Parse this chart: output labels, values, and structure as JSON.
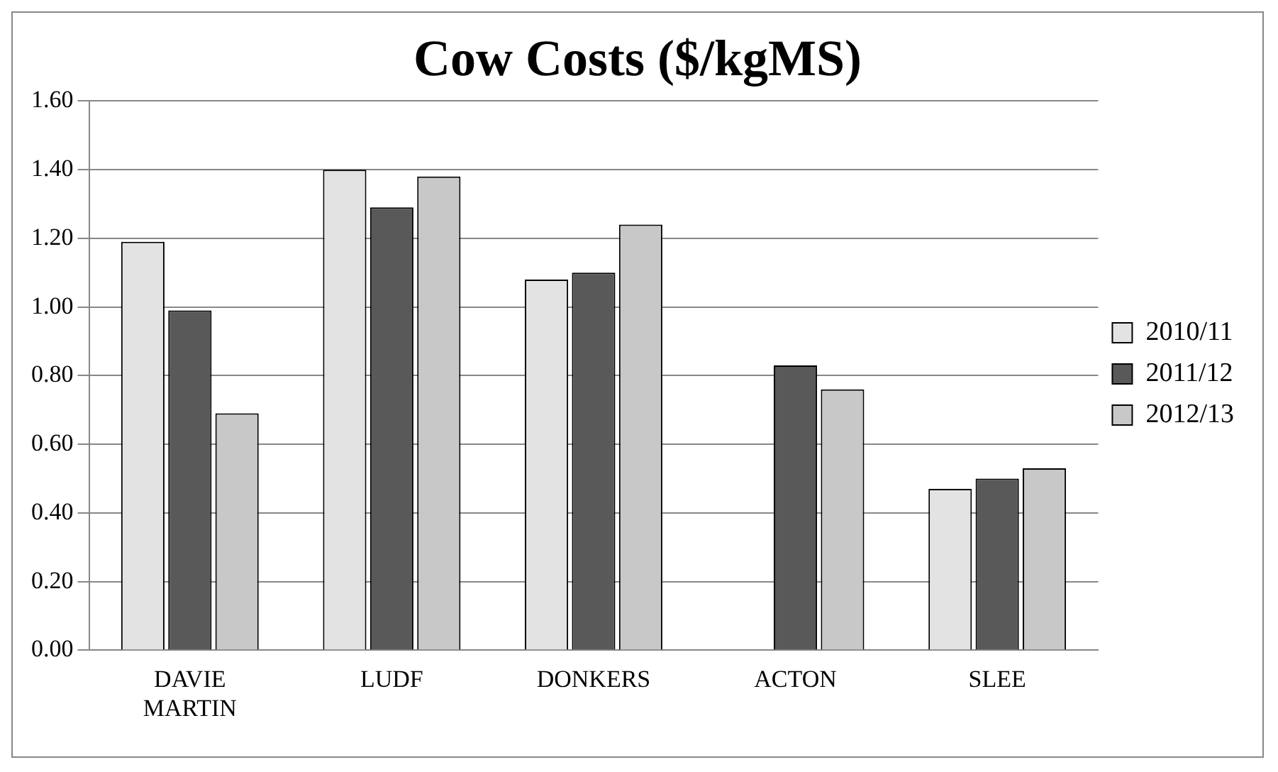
{
  "chart_data": {
    "type": "bar",
    "title": "Cow Costs ($/kgMS)",
    "categories": [
      "DAVIE MARTIN",
      "LUDF",
      "DONKERS",
      "ACTON",
      "SLEE"
    ],
    "series": [
      {
        "name": "2010/11",
        "color": "#e3e3e3",
        "values": [
          1.19,
          1.4,
          1.08,
          null,
          0.47
        ]
      },
      {
        "name": "2011/12",
        "color": "#595959",
        "values": [
          0.99,
          1.29,
          1.1,
          0.83,
          0.5
        ]
      },
      {
        "name": "2012/13",
        "color": "#c8c8c8",
        "values": [
          0.69,
          1.38,
          1.24,
          0.76,
          0.53
        ]
      }
    ],
    "ylim": [
      0,
      1.6
    ],
    "yticks": [
      {
        "value": 0,
        "label": "0.00"
      },
      {
        "value": 0.2,
        "label": "0.20"
      },
      {
        "value": 0.4,
        "label": "0.40"
      },
      {
        "value": 0.6,
        "label": "0.60"
      },
      {
        "value": 0.8,
        "label": "0.80"
      },
      {
        "value": 1.0,
        "label": "1.00"
      },
      {
        "value": 1.2,
        "label": "1.20"
      },
      {
        "value": 1.4,
        "label": "1.40"
      },
      {
        "value": 1.6,
        "label": "1.60"
      }
    ],
    "grid": "y",
    "legend": "right"
  }
}
